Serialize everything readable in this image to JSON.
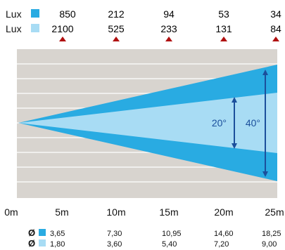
{
  "lux_rows": [
    {
      "label": "Lux",
      "swatch_color": "#29abe2",
      "values": [
        "850",
        "212",
        "94",
        "53",
        "34"
      ]
    },
    {
      "label": "Lux",
      "swatch_color": "#a8dcf4",
      "values": [
        "2100",
        "525",
        "233",
        "131",
        "84"
      ]
    }
  ],
  "marker_color": "#b01010",
  "beams": [
    {
      "angle_label": "40°",
      "color": "#29abe2"
    },
    {
      "angle_label": "20°",
      "color": "#a8dcf4"
    }
  ],
  "arrow_color": "#1b4f9c",
  "background_color": "#d8d4cf",
  "gridline_color": "#ffffff",
  "distance_labels": [
    "0m",
    "5m",
    "10m",
    "15m",
    "20m",
    "25m"
  ],
  "diameter_rows": [
    {
      "symbol": "Ø",
      "swatch_color": "#29abe2",
      "values": [
        "3,65",
        "7,30",
        "10,95",
        "14,60",
        "18,25"
      ]
    },
    {
      "symbol": "Ø",
      "swatch_color": "#a8dcf4",
      "values": [
        "1,80",
        "3,60",
        "5,40",
        "7,20",
        "9,00"
      ]
    }
  ]
}
